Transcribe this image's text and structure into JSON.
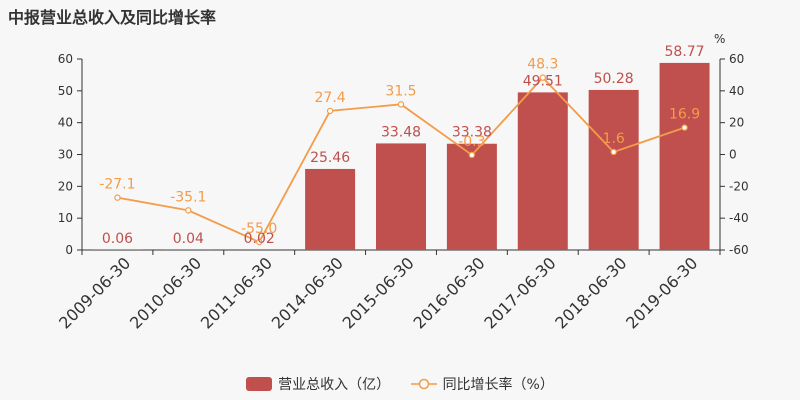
{
  "title": "中报营业总收入及同比增长率",
  "colors": {
    "bar": "#c0504d",
    "line": "#f39c4a",
    "axis": "#333333",
    "bg": "#f7f7f7"
  },
  "chart_data": {
    "type": "bar",
    "categories": [
      "2009-06-30",
      "2010-06-30",
      "2011-06-30",
      "2014-06-30",
      "2015-06-30",
      "2016-06-30",
      "2017-06-30",
      "2018-06-30",
      "2019-06-30"
    ],
    "series": [
      {
        "name": "营业总收入（亿）",
        "type": "bar",
        "axis": "left",
        "values": [
          0.06,
          0.04,
          0.02,
          25.46,
          33.48,
          33.38,
          49.51,
          50.28,
          58.77
        ],
        "labels": [
          "0.06",
          "0.04",
          "0.02",
          "25.46",
          "33.48",
          "33.38",
          "49.51",
          "50.28",
          "58.77"
        ]
      },
      {
        "name": "同比增长率（%）",
        "type": "line",
        "axis": "right",
        "values": [
          -27.1,
          -35.1,
          -55.0,
          27.4,
          31.5,
          -0.3,
          48.3,
          1.6,
          16.9
        ],
        "labels": [
          "-27.1",
          "-35.1",
          "-55.0",
          "27.4",
          "31.5",
          "-0.3",
          "48.3",
          "1.6",
          "16.9"
        ]
      }
    ],
    "y_left": {
      "ylim": [
        0,
        60
      ],
      "ticks": [
        "0",
        "10",
        "20",
        "30",
        "40",
        "50",
        "60"
      ]
    },
    "y_right": {
      "ylim": [
        -60,
        60
      ],
      "unit": "%",
      "ticks": [
        "-60",
        "-40",
        "-20",
        "0",
        "20",
        "40",
        "60"
      ]
    },
    "grid": false,
    "legend": "bottom"
  }
}
